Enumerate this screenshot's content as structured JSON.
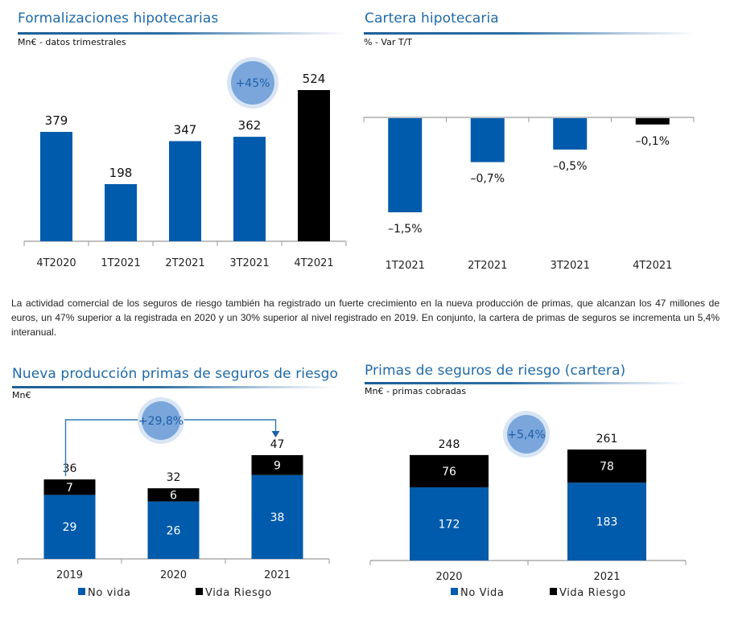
{
  "colors": {
    "blue": "#005bac",
    "black": "#000000",
    "title_blue": "#1f6aa8",
    "badge_fill": "#7aa6dc",
    "badge_halo": "#d9e5f4",
    "badge_text": "#1f5fa6",
    "axis": "#9a9a9a"
  },
  "paragraph": "La actividad comercial de los seguros de riesgo también ha registrado un fuerte crecimiento en la nueva producción de primas, que alcanzan los 47 millones de euros, un 47% superior a la registrada en 2020 y un 30% superior al nivel registrado en 2019. En conjunto, la cartera de primas de seguros se incrementa un 5,4% interanual.",
  "chart_data": [
    {
      "id": "formalizaciones",
      "type": "bar",
      "title": "Formalizaciones hipotecarias",
      "subtitle": "Mn€ - datos trimestrales",
      "categories": [
        "4T2020",
        "1T2021",
        "2T2021",
        "3T2021",
        "4T2021"
      ],
      "values": [
        379,
        198,
        347,
        362,
        524
      ],
      "value_labels": [
        "379",
        "198",
        "347",
        "362",
        "524"
      ],
      "bar_colors": [
        "blue",
        "blue",
        "blue",
        "blue",
        "black"
      ],
      "badge": "+45%",
      "ylim": [
        0,
        524
      ],
      "grid": false
    },
    {
      "id": "cartera",
      "type": "bar",
      "title": "Cartera hipotecaria",
      "subtitle": "% - Var T/T",
      "categories": [
        "1T2021",
        "2T2021",
        "3T2021",
        "4T2021"
      ],
      "values": [
        -1.5,
        -0.7,
        -0.5,
        -0.1
      ],
      "value_labels": [
        "-1,5%",
        "-0,7%",
        "-0,5%",
        "-0,1%"
      ],
      "bar_colors": [
        "blue",
        "blue",
        "blue",
        "black"
      ],
      "ylim": [
        -1.5,
        0
      ],
      "grid": false
    },
    {
      "id": "nueva_produccion",
      "type": "bar",
      "stacked": true,
      "title": "Nueva producción primas de seguros de riesgo",
      "subtitle": "Mn€",
      "categories": [
        "2019",
        "2020",
        "2021"
      ],
      "series": [
        {
          "name": "No vida",
          "color": "blue",
          "values": [
            29,
            26,
            38
          ]
        },
        {
          "name": "Vida Riesgo",
          "color": "black",
          "values": [
            7,
            6,
            9
          ]
        }
      ],
      "totals": [
        36,
        32,
        47
      ],
      "badge": "+29,8%",
      "badge_connects": [
        "2019",
        "2021"
      ],
      "legend": "bottom",
      "ylim": [
        0,
        47
      ]
    },
    {
      "id": "primas_cartera",
      "type": "bar",
      "stacked": true,
      "title": "Primas de seguros de riesgo (cartera)",
      "subtitle": "Mn€ - primas cobradas",
      "categories": [
        "2020",
        "2021"
      ],
      "series": [
        {
          "name": "No Vida",
          "color": "blue",
          "values": [
            172,
            183
          ]
        },
        {
          "name": "Vida Riesgo",
          "color": "black",
          "values": [
            76,
            78
          ]
        }
      ],
      "totals": [
        248,
        261
      ],
      "badge": "+5,4%",
      "legend": "bottom",
      "ylim": [
        0,
        261
      ]
    }
  ]
}
